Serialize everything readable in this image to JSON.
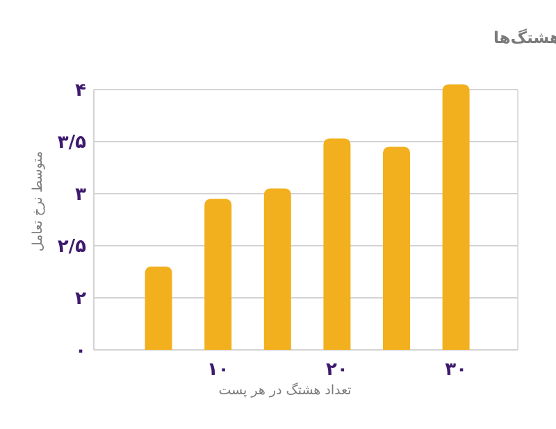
{
  "chart_data": {
    "type": "bar",
    "title": "نرخ تعامل با پست‌های اینستاگرام بر اساس تعداد هشتگ‌ها",
    "xlabel": "تعداد هشتگ در هر پست",
    "ylabel": "متوسط نرخ تعامل",
    "x": [
      5,
      10,
      15,
      20,
      25,
      30
    ],
    "values": [
      2.3,
      2.95,
      3.05,
      3.53,
      3.45,
      4.05
    ],
    "x_ticks": [
      {
        "value": 10,
        "label": "۱۰"
      },
      {
        "value": 20,
        "label": "۲۰"
      },
      {
        "value": 30,
        "label": "۳۰"
      }
    ],
    "y_ticks": [
      {
        "value": 0,
        "label": "۰"
      },
      {
        "value": 2,
        "label": "۲"
      },
      {
        "value": 2.5,
        "label": "۲/۵"
      },
      {
        "value": 3,
        "label": "۳"
      },
      {
        "value": 3.5,
        "label": "۳/۵"
      },
      {
        "value": 4,
        "label": "۴"
      }
    ],
    "xlim": [
      0,
      35
    ],
    "ylim": [
      0,
      4
    ],
    "y_axis_broken": true,
    "grid": true,
    "colors": {
      "bar": "#F2B01E",
      "tick_labels": "#3D1A6E",
      "text": "#7A7A7A",
      "grid": "#D3D3D3"
    }
  }
}
